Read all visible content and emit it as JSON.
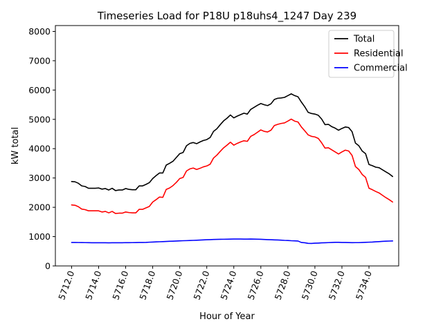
{
  "chart_data": {
    "type": "line",
    "title": "Timeseries Load for P18U p18uhs4_1247  Day 239",
    "xlabel": "Hour of Year",
    "ylabel": "kW total",
    "xlim": [
      5710.8,
      5736.2
    ],
    "ylim": [
      0,
      8200
    ],
    "xticks": [
      5712.0,
      5714.0,
      5716.0,
      5718.0,
      5720.0,
      5722.0,
      5724.0,
      5726.0,
      5728.0,
      5730.0,
      5732.0,
      5734.0
    ],
    "xtick_labels": [
      "5712.0",
      "5714.0",
      "5716.0",
      "5718.0",
      "5720.0",
      "5722.0",
      "5724.0",
      "5726.0",
      "5728.0",
      "5730.0",
      "5732.0",
      "5734.0"
    ],
    "yticks": [
      0,
      1000,
      2000,
      3000,
      4000,
      5000,
      6000,
      7000,
      8000
    ],
    "ytick_labels": [
      "0",
      "1000",
      "2000",
      "3000",
      "4000",
      "5000",
      "6000",
      "7000",
      "8000"
    ],
    "legend_position": "top-right",
    "x_start": 5712.0,
    "x_step": 0.25,
    "series": [
      {
        "name": "Total",
        "color": "#000000",
        "values": [
          2880,
          2870,
          2820,
          2730,
          2710,
          2650,
          2650,
          2650,
          2660,
          2620,
          2640,
          2590,
          2650,
          2570,
          2590,
          2590,
          2640,
          2610,
          2600,
          2600,
          2730,
          2730,
          2780,
          2840,
          2980,
          3080,
          3170,
          3170,
          3440,
          3500,
          3570,
          3700,
          3830,
          3870,
          4100,
          4180,
          4210,
          4170,
          4230,
          4280,
          4310,
          4380,
          4590,
          4680,
          4820,
          4950,
          5040,
          5150,
          5050,
          5110,
          5160,
          5210,
          5180,
          5340,
          5410,
          5480,
          5540,
          5500,
          5470,
          5530,
          5680,
          5720,
          5730,
          5750,
          5810,
          5870,
          5810,
          5770,
          5590,
          5430,
          5240,
          5200,
          5180,
          5140,
          5010,
          4820,
          4830,
          4750,
          4700,
          4630,
          4690,
          4740,
          4720,
          4580,
          4190,
          4100,
          3920,
          3830,
          3460,
          3420,
          3370,
          3350,
          3280,
          3210,
          3140,
          3050
        ]
      },
      {
        "name": "Residential",
        "color": "#ff0000",
        "values": [
          2080,
          2070,
          2020,
          1940,
          1920,
          1880,
          1880,
          1880,
          1880,
          1840,
          1860,
          1810,
          1860,
          1790,
          1800,
          1800,
          1840,
          1820,
          1810,
          1810,
          1930,
          1930,
          1980,
          2030,
          2180,
          2260,
          2350,
          2340,
          2610,
          2660,
          2740,
          2850,
          2980,
          3020,
          3240,
          3310,
          3340,
          3290,
          3330,
          3380,
          3410,
          3470,
          3680,
          3780,
          3910,
          4030,
          4120,
          4220,
          4120,
          4180,
          4230,
          4270,
          4250,
          4420,
          4480,
          4560,
          4640,
          4590,
          4570,
          4630,
          4790,
          4830,
          4860,
          4880,
          4940,
          5010,
          4940,
          4910,
          4740,
          4610,
          4470,
          4420,
          4400,
          4350,
          4200,
          4020,
          4030,
          3960,
          3890,
          3820,
          3890,
          3950,
          3920,
          3770,
          3390,
          3290,
          3120,
          3020,
          2650,
          2600,
          2540,
          2490,
          2410,
          2330,
          2260,
          2180
        ]
      },
      {
        "name": "Commercial",
        "color": "#0000ff",
        "values": [
          800,
          800,
          798,
          796,
          795,
          793,
          792,
          791,
          790,
          790,
          790,
          789,
          790,
          790,
          791,
          792,
          795,
          794,
          795,
          797,
          800,
          800,
          803,
          810,
          815,
          820,
          825,
          830,
          835,
          840,
          845,
          850,
          855,
          860,
          863,
          867,
          872,
          877,
          883,
          888,
          893,
          897,
          902,
          905,
          908,
          910,
          912,
          915,
          918,
          918,
          917,
          915,
          915,
          918,
          915,
          912,
          908,
          903,
          898,
          893,
          888,
          885,
          880,
          872,
          868,
          860,
          855,
          850,
          800,
          790,
          770,
          768,
          775,
          780,
          787,
          790,
          795,
          800,
          805,
          805,
          800,
          800,
          797,
          794,
          795,
          795,
          800,
          805,
          810,
          815,
          823,
          830,
          838,
          843,
          848,
          852
        ]
      }
    ]
  }
}
